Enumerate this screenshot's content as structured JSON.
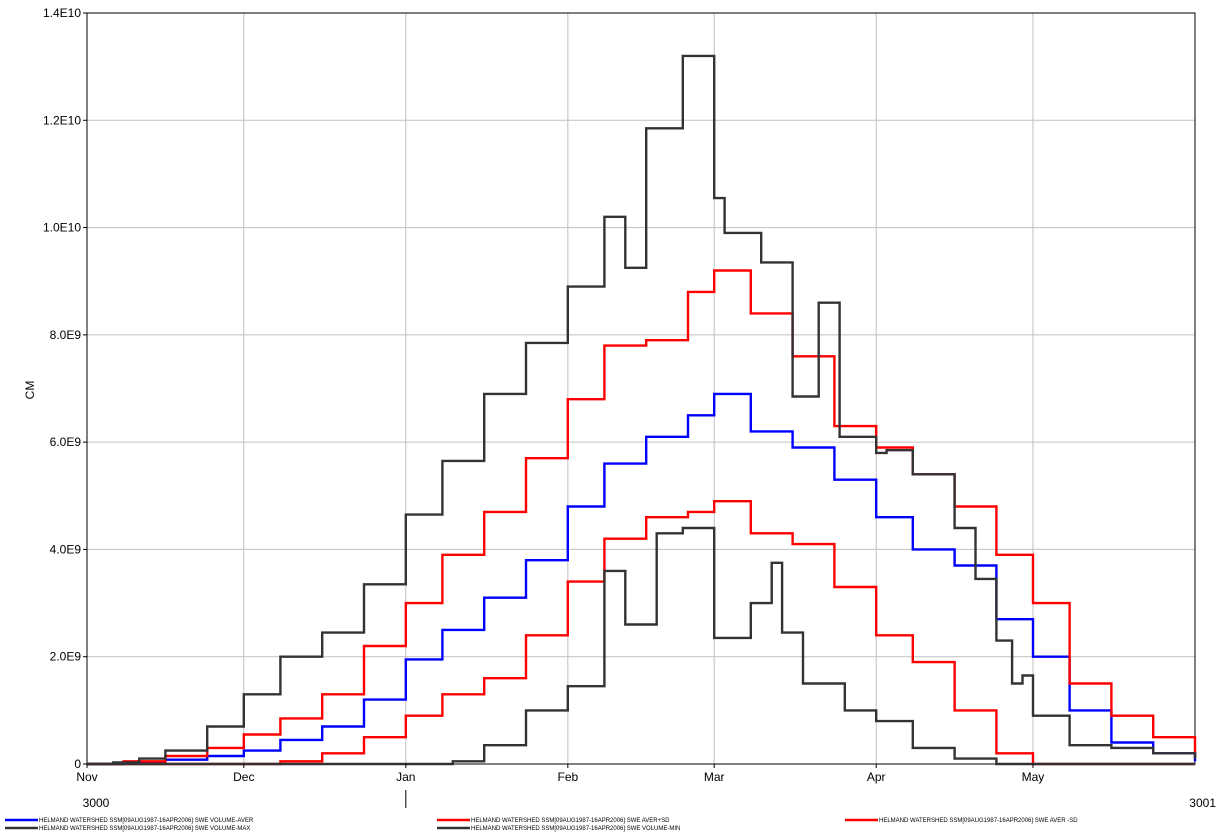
{
  "chart_data": {
    "type": "line",
    "step": true,
    "title": "",
    "ylabel": "CM",
    "xlabel": "",
    "ylim": [
      0,
      14000000000
    ],
    "y_ticks": [
      {
        "value": 0,
        "label": "0"
      },
      {
        "value": 2000000000,
        "label": "2.0E9"
      },
      {
        "value": 4000000000,
        "label": "4.0E9"
      },
      {
        "value": 6000000000,
        "label": "6.0E9"
      },
      {
        "value": 8000000000,
        "label": "8.0E9"
      },
      {
        "value": 10000000000,
        "label": "1.0E10"
      },
      {
        "value": 12000000000,
        "label": "1.2E10"
      },
      {
        "value": 14000000000,
        "label": "1.4E10"
      }
    ],
    "xlim": [
      "3000-11-01",
      "3001-06-01"
    ],
    "x_ticks": [
      {
        "date": "3000-11-01",
        "label": "Nov"
      },
      {
        "date": "3000-12-01",
        "label": "Dec"
      },
      {
        "date": "3001-01-01",
        "label": "Jan"
      },
      {
        "date": "3001-02-01",
        "label": "Feb"
      },
      {
        "date": "3001-03-01",
        "label": "Mar"
      },
      {
        "date": "3001-04-01",
        "label": "Apr"
      },
      {
        "date": "3001-05-01",
        "label": "May"
      }
    ],
    "year_labels": [
      {
        "date": "3000-11-01",
        "label": "3000"
      },
      {
        "date": "3001-06-01",
        "label": "3001"
      }
    ],
    "year_marker_date": "3001-01-01",
    "grid": true,
    "legend_position": "bottom",
    "series": [
      {
        "name": "HELMAND WATERSHED SSM[09AUG1987-16APR2006] SWE VOLUME-AVER",
        "color": "#0000ff",
        "x": [
          "3000-11-01",
          "3000-11-08",
          "3000-11-16",
          "3000-11-24",
          "3000-12-01",
          "3000-12-08",
          "3000-12-16",
          "3000-12-24",
          "3001-01-01",
          "3001-01-08",
          "3001-01-16",
          "3001-01-24",
          "3001-02-01",
          "3001-02-08",
          "3001-02-16",
          "3001-02-24",
          "3001-03-01",
          "3001-03-08",
          "3001-03-16",
          "3001-03-24",
          "3001-04-01",
          "3001-04-08",
          "3001-04-16",
          "3001-04-24",
          "3001-05-01",
          "3001-05-08",
          "3001-05-16",
          "3001-05-24",
          "3001-06-01"
        ],
        "y": [
          0,
          30000000,
          80000000,
          150000000,
          250000000,
          450000000,
          700000000,
          1200000000,
          1950000000,
          2500000000,
          3100000000,
          3800000000,
          4800000000,
          5600000000,
          6100000000,
          6500000000,
          6900000000,
          6200000000,
          5900000000,
          5300000000,
          4600000000,
          4000000000,
          3700000000,
          2700000000,
          2000000000,
          1000000000,
          400000000,
          200000000,
          50000000
        ]
      },
      {
        "name": "HELMAND WATERSHED SSM[09AUG1987-16APR2006] SWE AVER+SD",
        "color": "#ff0000",
        "x": [
          "3000-11-01",
          "3000-11-08",
          "3000-11-16",
          "3000-11-24",
          "3000-12-01",
          "3000-12-08",
          "3000-12-16",
          "3000-12-24",
          "3001-01-01",
          "3001-01-08",
          "3001-01-16",
          "3001-01-24",
          "3001-02-01",
          "3001-02-08",
          "3001-02-16",
          "3001-02-24",
          "3001-03-01",
          "3001-03-08",
          "3001-03-16",
          "3001-03-24",
          "3001-04-01",
          "3001-04-08",
          "3001-04-16",
          "3001-04-24",
          "3001-05-01",
          "3001-05-08",
          "3001-05-16",
          "3001-05-24",
          "3001-06-01"
        ],
        "y": [
          0,
          50000000,
          150000000,
          300000000,
          550000000,
          850000000,
          1300000000,
          2200000000,
          3000000000,
          3900000000,
          4700000000,
          5700000000,
          6800000000,
          7800000000,
          7900000000,
          8800000000,
          9200000000,
          8400000000,
          7600000000,
          6300000000,
          5900000000,
          5400000000,
          4800000000,
          3900000000,
          3000000000,
          1500000000,
          900000000,
          500000000,
          100000000
        ]
      },
      {
        "name": "HELMAND WATERSHED SSM[09AUG1987-16APR2006] SWE AVER -SD",
        "color": "#ff0000",
        "x": [
          "3000-11-01",
          "3000-12-01",
          "3000-12-08",
          "3000-12-16",
          "3000-12-24",
          "3001-01-01",
          "3001-01-08",
          "3001-01-16",
          "3001-01-24",
          "3001-02-01",
          "3001-02-08",
          "3001-02-16",
          "3001-02-24",
          "3001-03-01",
          "3001-03-08",
          "3001-03-16",
          "3001-03-24",
          "3001-04-01",
          "3001-04-08",
          "3001-04-16",
          "3001-04-24",
          "3001-05-01",
          "3001-06-01"
        ],
        "y": [
          0,
          0,
          50000000,
          200000000,
          500000000,
          900000000,
          1300000000,
          1600000000,
          2400000000,
          3400000000,
          4200000000,
          4600000000,
          4700000000,
          4900000000,
          4300000000,
          4100000000,
          3300000000,
          2400000000,
          1900000000,
          1000000000,
          200000000,
          0,
          0
        ]
      },
      {
        "name": "HELMAND WATERSHED SSM[09AUG1987-16APR2006] SWE VOLUME-MAX",
        "color": "#333333",
        "x": [
          "3000-11-01",
          "3000-11-06",
          "3000-11-11",
          "3000-11-16",
          "3000-11-24",
          "3000-12-01",
          "3000-12-08",
          "3000-12-16",
          "3000-12-24",
          "3001-01-01",
          "3001-01-08",
          "3001-01-16",
          "3001-01-24",
          "3001-02-01",
          "3001-02-08",
          "3001-02-12",
          "3001-02-16",
          "3001-02-23",
          "3001-03-01",
          "3001-03-03",
          "3001-03-05",
          "3001-03-10",
          "3001-03-16",
          "3001-03-21",
          "3001-03-25",
          "3001-04-01",
          "3001-04-03",
          "3001-04-08",
          "3001-04-16",
          "3001-04-20",
          "3001-04-24",
          "3001-04-27",
          "3001-04-29",
          "3001-05-01",
          "3001-05-08",
          "3001-05-16",
          "3001-05-24",
          "3001-06-01"
        ],
        "y": [
          0,
          30000000,
          100000000,
          250000000,
          700000000,
          1300000000,
          2000000000,
          2450000000,
          3350000000,
          4650000000,
          5650000000,
          6900000000,
          7850000000,
          8900000000,
          10200000000,
          9250000000,
          11850000000,
          13200000000,
          10550000000,
          9900000000,
          9900000000,
          9350000000,
          6850000000,
          8600000000,
          6100000000,
          5800000000,
          5850000000,
          5400000000,
          4400000000,
          3450000000,
          2300000000,
          1500000000,
          1650000000,
          900000000,
          350000000,
          300000000,
          200000000,
          100000000
        ]
      },
      {
        "name": "HELMAND WATERSHED SSM[09AUG1987-16APR2006] SWE VOLUME-MIN",
        "color": "#333333",
        "x": [
          "3000-11-01",
          "3001-01-10",
          "3001-01-16",
          "3001-01-24",
          "3001-02-01",
          "3001-02-08",
          "3001-02-12",
          "3001-02-18",
          "3001-02-23",
          "3001-03-01",
          "3001-03-08",
          "3001-03-12",
          "3001-03-14",
          "3001-03-18",
          "3001-03-26",
          "3001-04-01",
          "3001-04-08",
          "3001-04-16",
          "3001-04-24",
          "3001-06-01"
        ],
        "y": [
          0,
          50000000,
          350000000,
          1000000000,
          1450000000,
          3600000000,
          2600000000,
          4300000000,
          4400000000,
          2350000000,
          3000000000,
          3750000000,
          2450000000,
          1500000000,
          1000000000,
          800000000,
          300000000,
          100000000,
          0,
          0
        ]
      }
    ]
  }
}
